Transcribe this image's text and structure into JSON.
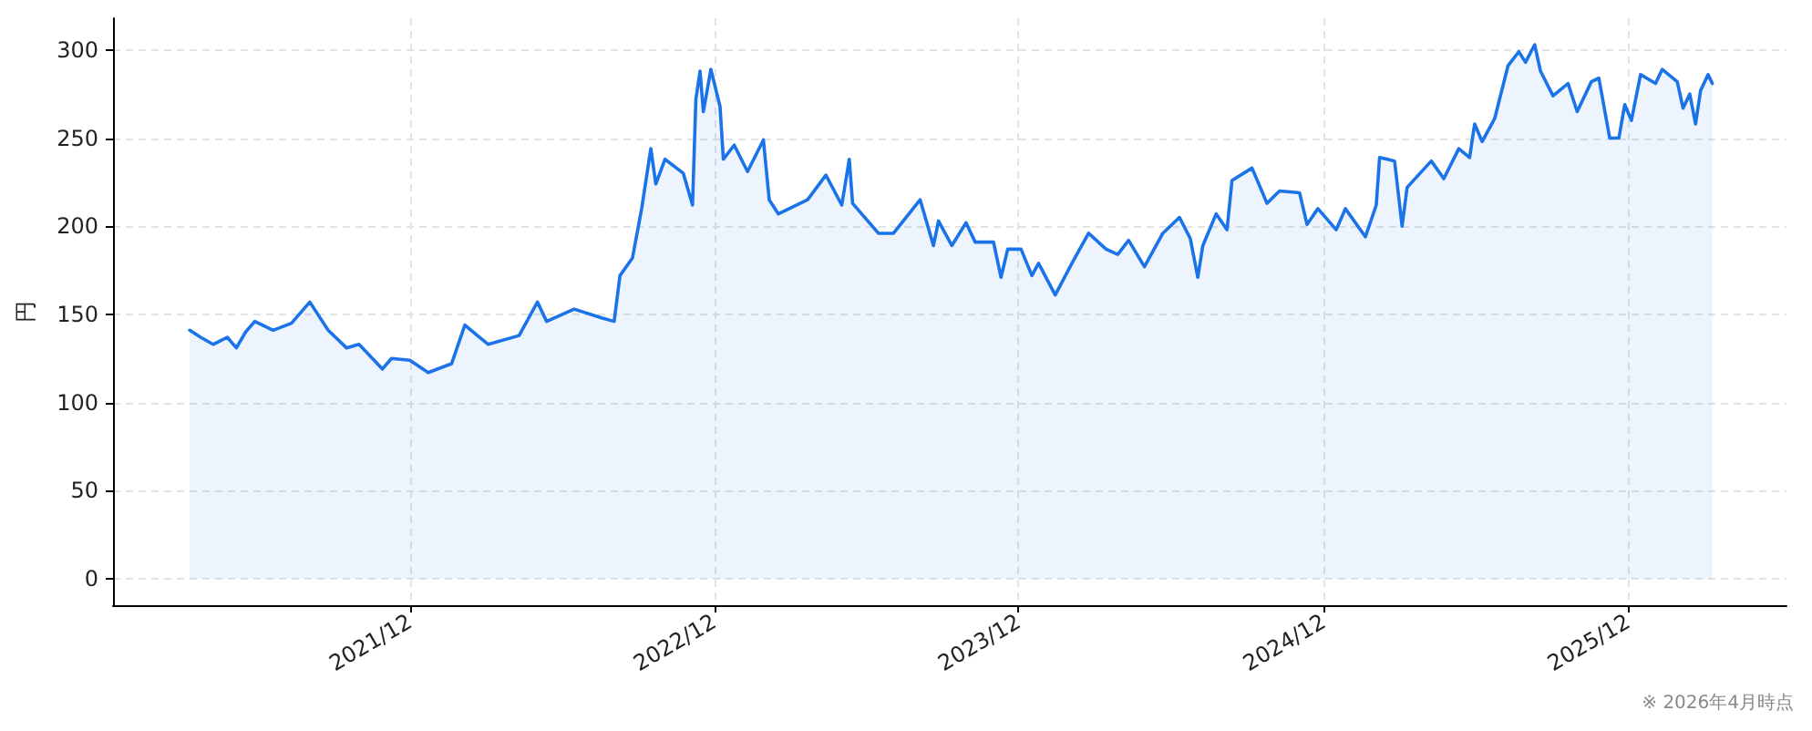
{
  "chart_data": {
    "type": "area",
    "ylabel": "円",
    "annotations": [
      "※ 2026年4月時点"
    ],
    "x": [
      "2021-03-12",
      "2021-03-25",
      "2021-04-09",
      "2021-04-26",
      "2021-05-07",
      "2021-05-18",
      "2021-05-29",
      "2021-06-20",
      "2021-07-12",
      "2021-08-03",
      "2021-08-25",
      "2021-09-16",
      "2021-10-01",
      "2021-10-29",
      "2021-11-09",
      "2021-12-01",
      "2021-12-23",
      "2022-01-20",
      "2022-02-05",
      "2022-02-20",
      "2022-03-05",
      "2022-04-11",
      "2022-05-03",
      "2022-05-14",
      "2022-06-16",
      "2022-07-19",
      "2022-08-03",
      "2022-08-10",
      "2022-08-25",
      "2022-09-05",
      "2022-09-16",
      "2022-09-22",
      "2022-10-03",
      "2022-10-25",
      "2022-11-05",
      "2022-11-09",
      "2022-11-14",
      "2022-11-18",
      "2022-11-27",
      "2022-12-08",
      "2022-12-12",
      "2022-12-25",
      "2023-01-10",
      "2023-01-29",
      "2023-02-05",
      "2023-02-16",
      "2023-03-23",
      "2023-04-14",
      "2023-05-03",
      "2023-05-12",
      "2023-05-16",
      "2023-06-16",
      "2023-07-04",
      "2023-08-05",
      "2023-08-21",
      "2023-08-27",
      "2023-09-12",
      "2023-09-29",
      "2023-10-10",
      "2023-11-01",
      "2023-11-10",
      "2023-11-18",
      "2023-12-04",
      "2023-12-17",
      "2023-12-25",
      "2024-01-14",
      "2024-02-03",
      "2024-02-23",
      "2024-03-15",
      "2024-03-29",
      "2024-04-11",
      "2024-04-30",
      "2024-05-22",
      "2024-06-11",
      "2024-06-24",
      "2024-07-03",
      "2024-07-09",
      "2024-07-25",
      "2024-08-07",
      "2024-08-13",
      "2024-09-06",
      "2024-09-24",
      "2024-10-09",
      "2024-11-02",
      "2024-11-11",
      "2024-11-24",
      "2024-12-16",
      "2024-12-27",
      "2025-01-20",
      "2025-02-02",
      "2025-02-06",
      "2025-02-24",
      "2025-03-05",
      "2025-03-11",
      "2025-04-09",
      "2025-04-24",
      "2025-05-12",
      "2025-05-25",
      "2025-05-31",
      "2025-06-09",
      "2025-06-24",
      "2025-07-10",
      "2025-07-23",
      "2025-07-31",
      "2025-08-11",
      "2025-08-18",
      "2025-09-02",
      "2025-09-20",
      "2025-10-01",
      "2025-10-18",
      "2025-10-27",
      "2025-11-09",
      "2025-11-20",
      "2025-11-27",
      "2025-12-05",
      "2025-12-16",
      "2026-01-03",
      "2026-01-11",
      "2026-01-29",
      "2026-02-05",
      "2026-02-13",
      "2026-02-20",
      "2026-02-26",
      "2026-03-07",
      "2026-03-12"
    ],
    "series": [
      {
        "color": "#1a73e8",
        "values": [
          141,
          137,
          133,
          137,
          131,
          140,
          146,
          141,
          145,
          157,
          141,
          131,
          133,
          119,
          125,
          124,
          117,
          122,
          144,
          138,
          133,
          138,
          157,
          146,
          153,
          148,
          146,
          172,
          182,
          210,
          244,
          224,
          238,
          230,
          212,
          272,
          288,
          265,
          289,
          268,
          238,
          246,
          231,
          249,
          215,
          207,
          215,
          229,
          212,
          238,
          213,
          196,
          196,
          215,
          189,
          203,
          189,
          202,
          191,
          191,
          171,
          187,
          187,
          172,
          179,
          161,
          179,
          196,
          187,
          184,
          192,
          177,
          196,
          205,
          193,
          171,
          189,
          207,
          198,
          226,
          233,
          213,
          220,
          219,
          201,
          210,
          198,
          210,
          194,
          212,
          239,
          237,
          200,
          222,
          237,
          227,
          244,
          239,
          258,
          248,
          261,
          291,
          299,
          293,
          303,
          288,
          274,
          281,
          265,
          282,
          284,
          250,
          250,
          269,
          260,
          286,
          281,
          289,
          282,
          267,
          275,
          258,
          277,
          286,
          281
        ]
      }
    ],
    "xlim": [
      "2020-12-10",
      "2026-06-09"
    ],
    "xticks": [
      {
        "value": "2021-12-01",
        "label": "2021/12"
      },
      {
        "value": "2022-12-01",
        "label": "2022/12"
      },
      {
        "value": "2023-12-01",
        "label": "2023/12"
      },
      {
        "value": "2024-12-01",
        "label": "2024/12"
      },
      {
        "value": "2025-12-01",
        "label": "2025/12"
      }
    ],
    "ylim": [
      -15,
      318
    ],
    "yticks": [
      0,
      50,
      100,
      150,
      200,
      250,
      300
    ],
    "grid": true,
    "marker": "none",
    "line_style": "solid"
  }
}
